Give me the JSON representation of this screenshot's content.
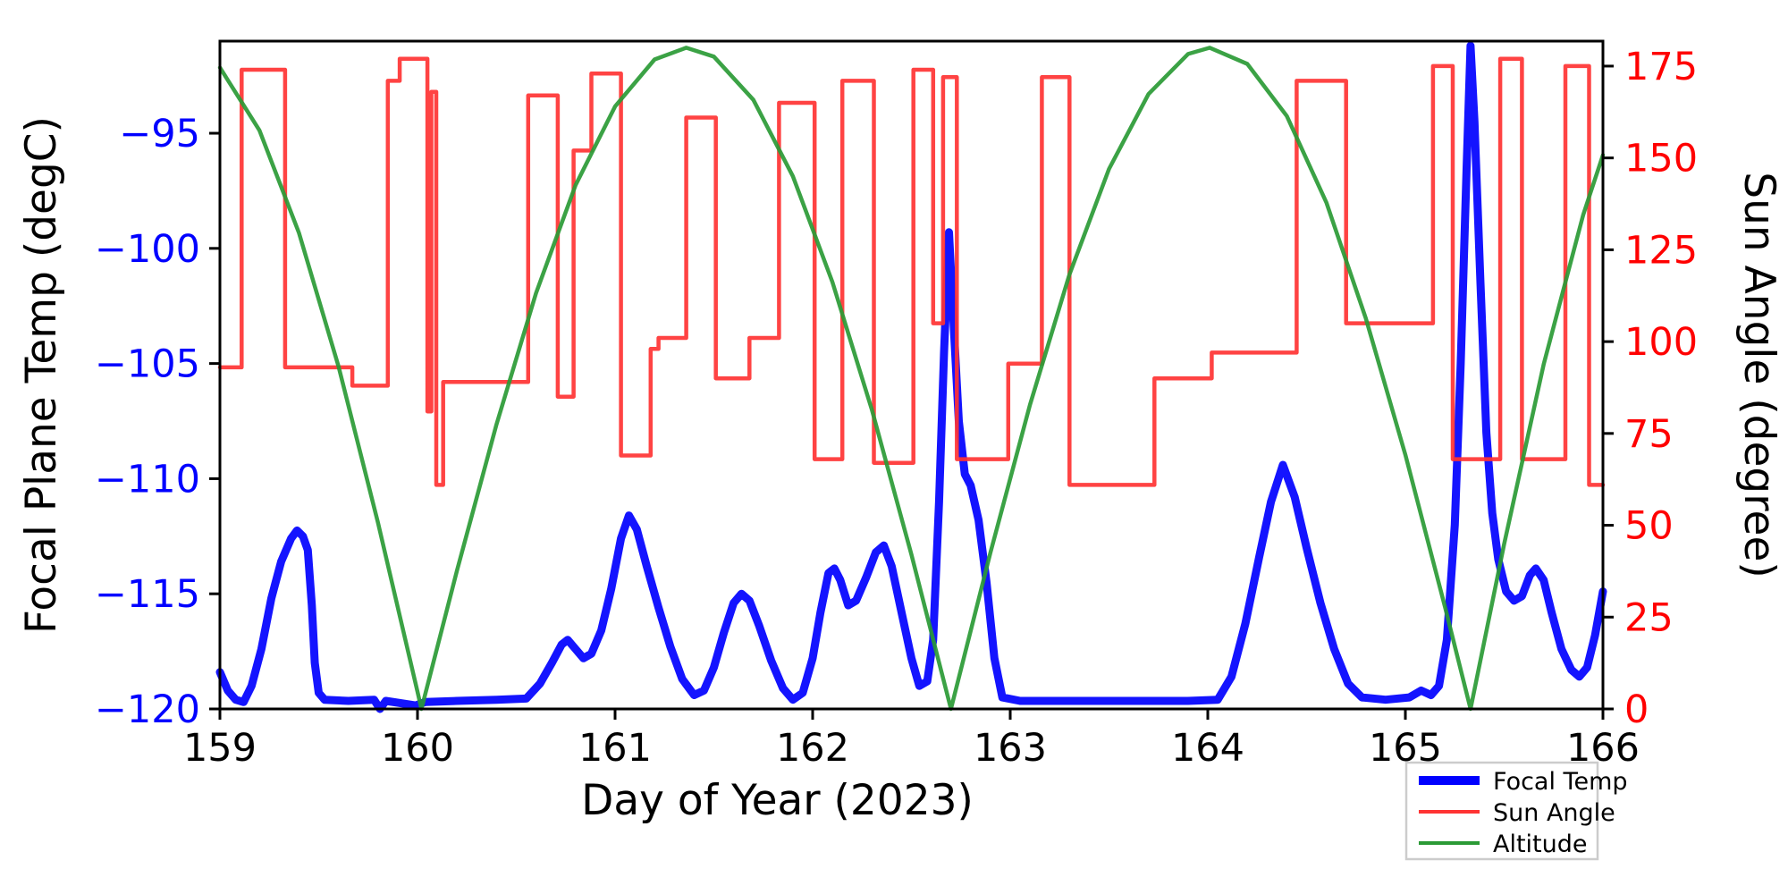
{
  "figure": {
    "background": "#ffffff",
    "title": ""
  },
  "colors": {
    "focal_temp_line": "#0000ff",
    "sun_angle_line": "#ff3333",
    "altitude_line": "#2a9a35",
    "left_tick_labels": "#0000ff",
    "right_tick_labels": "#ff0000",
    "x_tick_labels": "#000000",
    "axis_spine": "#000000",
    "legend_border": "#cccccc",
    "legend_bg": "#ffffff"
  },
  "chart_data": {
    "type": "line",
    "title": "",
    "xlabel": "Day of Year (2023)",
    "ylabel_left": "Focal Plane Temp (degC)",
    "ylabel_right": "Sun Angle (degree)",
    "xlim": [
      159,
      166
    ],
    "x_ticks": [
      159,
      160,
      161,
      162,
      163,
      164,
      165,
      166
    ],
    "ylim_left": [
      -120,
      -91
    ],
    "y_ticks_left": [
      -95,
      -100,
      -105,
      -110,
      -115,
      -120
    ],
    "ylim_right": [
      0,
      181.8
    ],
    "y_ticks_right": [
      0,
      25,
      50,
      75,
      100,
      125,
      150,
      175
    ],
    "grid": false,
    "legend": {
      "position": "lower-right-outside",
      "entries": [
        {
          "label": "Focal Temp",
          "color": "#0000ff",
          "sample_thickness": 10
        },
        {
          "label": "Sun Angle",
          "color": "#ff3333",
          "sample_thickness": 4
        },
        {
          "label": "Altitude",
          "color": "#2a9a35",
          "sample_thickness": 4
        }
      ]
    },
    "series": [
      {
        "name": "Focal Temp",
        "axis": "left",
        "color": "#0000ff",
        "width": 9,
        "style": "smooth",
        "points": [
          [
            159.0,
            -118.4
          ],
          [
            159.04,
            -119.2
          ],
          [
            159.08,
            -119.6
          ],
          [
            159.12,
            -119.7
          ],
          [
            159.16,
            -119.0
          ],
          [
            159.21,
            -117.4
          ],
          [
            159.26,
            -115.2
          ],
          [
            159.31,
            -113.6
          ],
          [
            159.36,
            -112.6
          ],
          [
            159.39,
            -112.25
          ],
          [
            159.42,
            -112.5
          ],
          [
            159.445,
            -113.1
          ],
          [
            159.465,
            -115.5
          ],
          [
            159.48,
            -118.0
          ],
          [
            159.5,
            -119.3
          ],
          [
            159.53,
            -119.6
          ],
          [
            159.65,
            -119.65
          ],
          [
            159.78,
            -119.6
          ],
          [
            159.81,
            -120.0
          ],
          [
            159.84,
            -119.65
          ],
          [
            159.99,
            -119.85
          ],
          [
            160.04,
            -119.7
          ],
          [
            160.2,
            -119.65
          ],
          [
            160.4,
            -119.6
          ],
          [
            160.55,
            -119.55
          ],
          [
            160.62,
            -118.9
          ],
          [
            160.68,
            -118.0
          ],
          [
            160.73,
            -117.2
          ],
          [
            160.76,
            -117.0
          ],
          [
            160.8,
            -117.4
          ],
          [
            160.84,
            -117.8
          ],
          [
            160.88,
            -117.6
          ],
          [
            160.93,
            -116.6
          ],
          [
            160.98,
            -114.8
          ],
          [
            161.03,
            -112.6
          ],
          [
            161.07,
            -111.6
          ],
          [
            161.11,
            -112.2
          ],
          [
            161.16,
            -113.8
          ],
          [
            161.22,
            -115.6
          ],
          [
            161.28,
            -117.3
          ],
          [
            161.34,
            -118.7
          ],
          [
            161.4,
            -119.4
          ],
          [
            161.45,
            -119.2
          ],
          [
            161.5,
            -118.2
          ],
          [
            161.55,
            -116.7
          ],
          [
            161.6,
            -115.4
          ],
          [
            161.64,
            -115.0
          ],
          [
            161.68,
            -115.3
          ],
          [
            161.73,
            -116.4
          ],
          [
            161.79,
            -117.9
          ],
          [
            161.85,
            -119.1
          ],
          [
            161.9,
            -119.6
          ],
          [
            161.95,
            -119.3
          ],
          [
            162.0,
            -117.8
          ],
          [
            162.04,
            -115.8
          ],
          [
            162.08,
            -114.1
          ],
          [
            162.11,
            -113.9
          ],
          [
            162.14,
            -114.4
          ],
          [
            162.18,
            -115.5
          ],
          [
            162.22,
            -115.3
          ],
          [
            162.27,
            -114.3
          ],
          [
            162.32,
            -113.2
          ],
          [
            162.36,
            -112.9
          ],
          [
            162.4,
            -113.8
          ],
          [
            162.45,
            -115.8
          ],
          [
            162.5,
            -117.8
          ],
          [
            162.54,
            -119.0
          ],
          [
            162.58,
            -118.8
          ],
          [
            162.61,
            -117.0
          ],
          [
            162.64,
            -111.0
          ],
          [
            162.665,
            -104.5
          ],
          [
            162.69,
            -99.3
          ],
          [
            162.715,
            -103.5
          ],
          [
            162.74,
            -107.5
          ],
          [
            162.77,
            -109.8
          ],
          [
            162.8,
            -110.3
          ],
          [
            162.84,
            -111.8
          ],
          [
            162.88,
            -114.5
          ],
          [
            162.92,
            -117.8
          ],
          [
            162.96,
            -119.5
          ],
          [
            163.05,
            -119.65
          ],
          [
            163.3,
            -119.65
          ],
          [
            163.6,
            -119.65
          ],
          [
            163.9,
            -119.65
          ],
          [
            164.05,
            -119.6
          ],
          [
            164.12,
            -118.6
          ],
          [
            164.19,
            -116.3
          ],
          [
            164.26,
            -113.4
          ],
          [
            164.32,
            -111.0
          ],
          [
            164.38,
            -109.4
          ],
          [
            164.44,
            -110.8
          ],
          [
            164.5,
            -113.0
          ],
          [
            164.57,
            -115.4
          ],
          [
            164.64,
            -117.4
          ],
          [
            164.71,
            -118.9
          ],
          [
            164.78,
            -119.5
          ],
          [
            164.9,
            -119.6
          ],
          [
            165.02,
            -119.5
          ],
          [
            165.08,
            -119.2
          ],
          [
            165.13,
            -119.4
          ],
          [
            165.17,
            -119.0
          ],
          [
            165.21,
            -117.0
          ],
          [
            165.25,
            -112.0
          ],
          [
            165.28,
            -105.0
          ],
          [
            165.31,
            -96.5
          ],
          [
            165.33,
            -91.2
          ],
          [
            165.35,
            -94.5
          ],
          [
            165.38,
            -101.5
          ],
          [
            165.41,
            -108.0
          ],
          [
            165.44,
            -111.5
          ],
          [
            165.47,
            -113.5
          ],
          [
            165.51,
            -114.9
          ],
          [
            165.55,
            -115.3
          ],
          [
            165.59,
            -115.1
          ],
          [
            165.63,
            -114.2
          ],
          [
            165.66,
            -113.9
          ],
          [
            165.7,
            -114.4
          ],
          [
            165.74,
            -115.8
          ],
          [
            165.79,
            -117.4
          ],
          [
            165.84,
            -118.3
          ],
          [
            165.88,
            -118.6
          ],
          [
            165.92,
            -118.2
          ],
          [
            165.96,
            -116.8
          ],
          [
            166.0,
            -114.9
          ]
        ]
      },
      {
        "name": "Sun Angle",
        "axis": "right",
        "color": "#ff3333",
        "width": 4.5,
        "style": "step",
        "points": [
          [
            159.0,
            93
          ],
          [
            159.11,
            174
          ],
          [
            159.33,
            93
          ],
          [
            159.67,
            88
          ],
          [
            159.85,
            171
          ],
          [
            159.91,
            177
          ],
          [
            160.05,
            81
          ],
          [
            160.07,
            168
          ],
          [
            160.095,
            61
          ],
          [
            160.13,
            89
          ],
          [
            160.56,
            167
          ],
          [
            160.71,
            85
          ],
          [
            160.79,
            152
          ],
          [
            160.88,
            173
          ],
          [
            161.03,
            69
          ],
          [
            161.18,
            98
          ],
          [
            161.22,
            101
          ],
          [
            161.36,
            161
          ],
          [
            161.51,
            90
          ],
          [
            161.68,
            101
          ],
          [
            161.83,
            165
          ],
          [
            162.01,
            68
          ],
          [
            162.15,
            171
          ],
          [
            162.31,
            67
          ],
          [
            162.51,
            174
          ],
          [
            162.61,
            105
          ],
          [
            162.66,
            172
          ],
          [
            162.73,
            68
          ],
          [
            162.99,
            94
          ],
          [
            163.16,
            172
          ],
          [
            163.3,
            61
          ],
          [
            163.73,
            90
          ],
          [
            164.02,
            97
          ],
          [
            164.45,
            171
          ],
          [
            164.7,
            105
          ],
          [
            165.14,
            175
          ],
          [
            165.24,
            68
          ],
          [
            165.48,
            177
          ],
          [
            165.59,
            68
          ],
          [
            165.81,
            175
          ],
          [
            165.93,
            61
          ],
          [
            166.0,
            61
          ]
        ]
      },
      {
        "name": "Altitude",
        "axis": "right",
        "color": "#2a9a35",
        "width": 4.5,
        "style": "smooth",
        "points": [
          [
            159.0,
            174.6
          ],
          [
            159.2,
            157.5
          ],
          [
            159.4,
            129.6
          ],
          [
            159.6,
            93.3
          ],
          [
            159.8,
            50.7
          ],
          [
            160.0,
            4.7
          ],
          [
            160.02,
            0
          ],
          [
            160.2,
            37.7
          ],
          [
            160.4,
            77.5
          ],
          [
            160.6,
            113.2
          ],
          [
            160.8,
            142.6
          ],
          [
            161.0,
            164.0
          ],
          [
            161.2,
            176.8
          ],
          [
            161.36,
            180
          ],
          [
            161.5,
            177.6
          ],
          [
            161.7,
            165.8
          ],
          [
            161.9,
            145.0
          ],
          [
            162.1,
            116.2
          ],
          [
            162.3,
            81.4
          ],
          [
            162.5,
            42.0
          ],
          [
            162.7,
            0
          ],
          [
            162.9,
            42.6
          ],
          [
            163.1,
            82.8
          ],
          [
            163.3,
            118.3
          ],
          [
            163.5,
            147.0
          ],
          [
            163.7,
            167.4
          ],
          [
            163.9,
            178.3
          ],
          [
            164.01,
            180
          ],
          [
            164.2,
            175.6
          ],
          [
            164.4,
            161.4
          ],
          [
            164.6,
            137.9
          ],
          [
            164.8,
            106.3
          ],
          [
            165.0,
            69.2
          ],
          [
            165.2,
            27.9
          ],
          [
            165.33,
            0
          ],
          [
            165.5,
            44.9
          ],
          [
            165.7,
            93.8
          ],
          [
            165.9,
            134.5
          ],
          [
            166.0,
            150.8
          ]
        ]
      }
    ]
  }
}
